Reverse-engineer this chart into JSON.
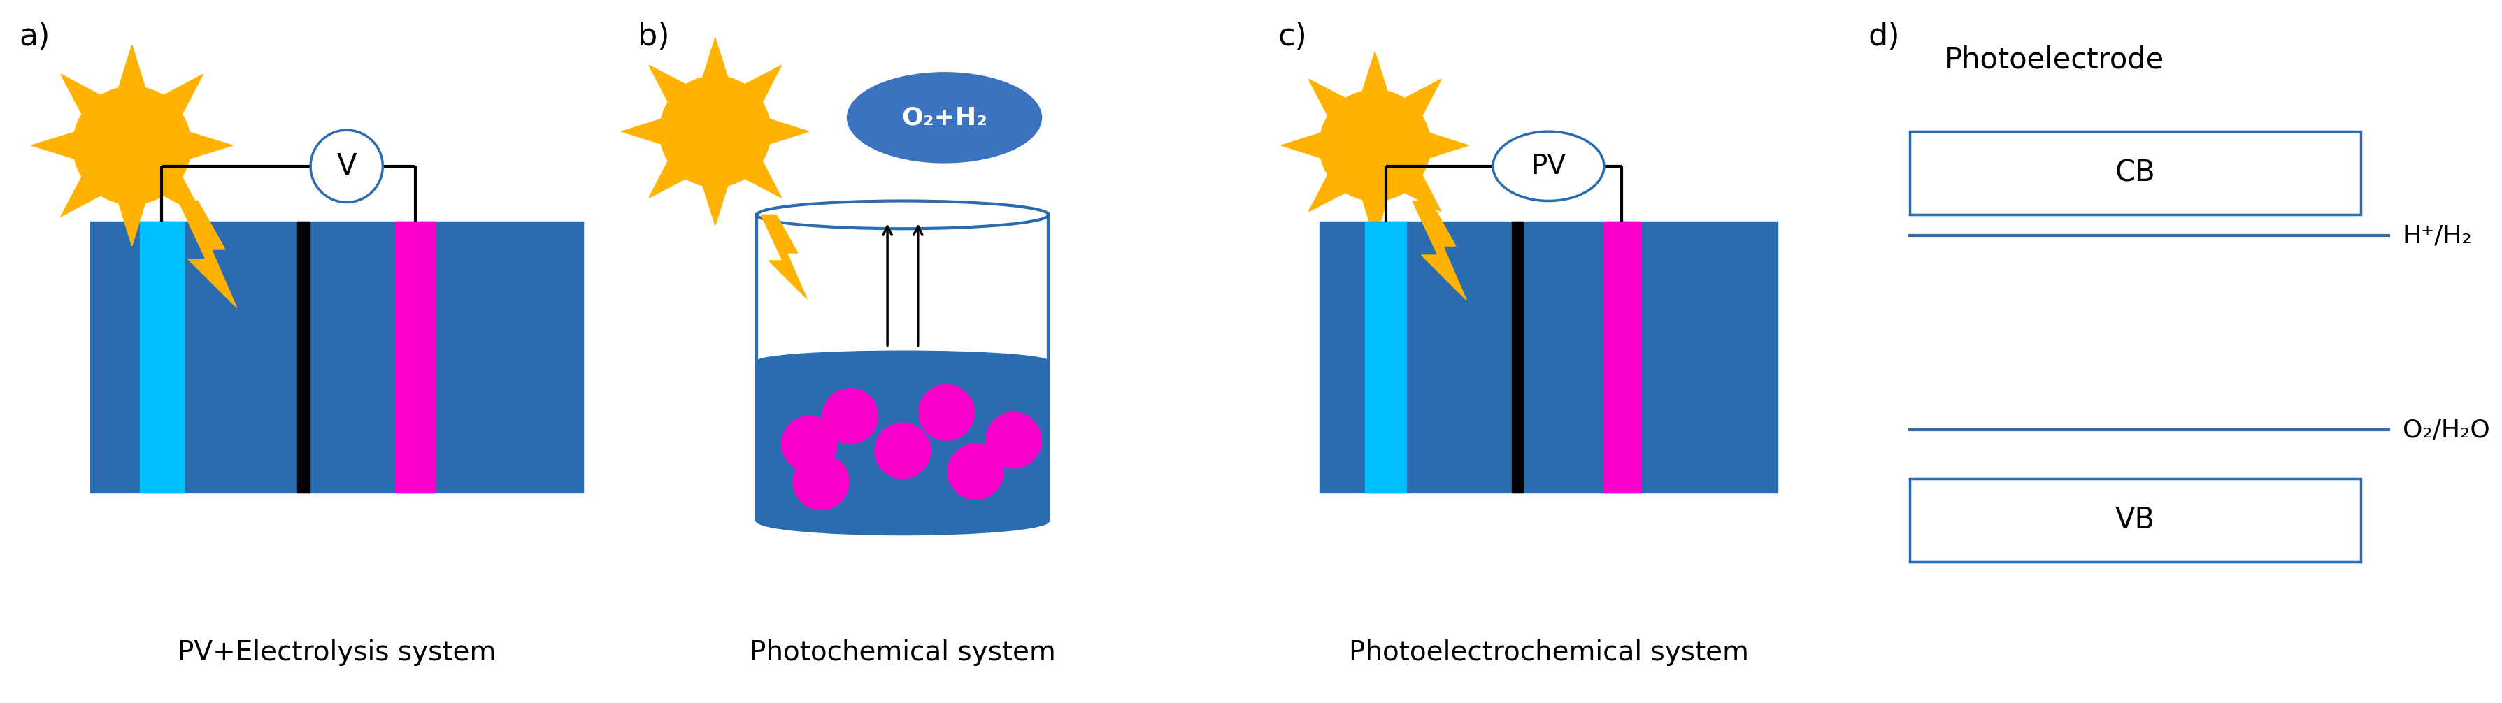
{
  "fig_width": 35.78,
  "fig_height": 10.06,
  "bg_color": "#ffffff",
  "blue_dark": "#2B6CB0",
  "blue_light": "#00BFFF",
  "magenta": "#FF00CC",
  "sun_orange": "#FFB300",
  "panel_labels": [
    "a)",
    "b)",
    "c)",
    "d)"
  ],
  "captions": [
    "PV+Electrolysis system",
    "Photochemical system",
    "Photoelectrochemical system"
  ],
  "d_title": "Photoelectrode",
  "d_bands": [
    "CB",
    "VB"
  ],
  "d_labels": [
    "H⁺/H₂",
    "O₂/H₂O"
  ],
  "voltmeter_label": "V",
  "pv_label": "PV",
  "gas_label": "O₂+H₂"
}
